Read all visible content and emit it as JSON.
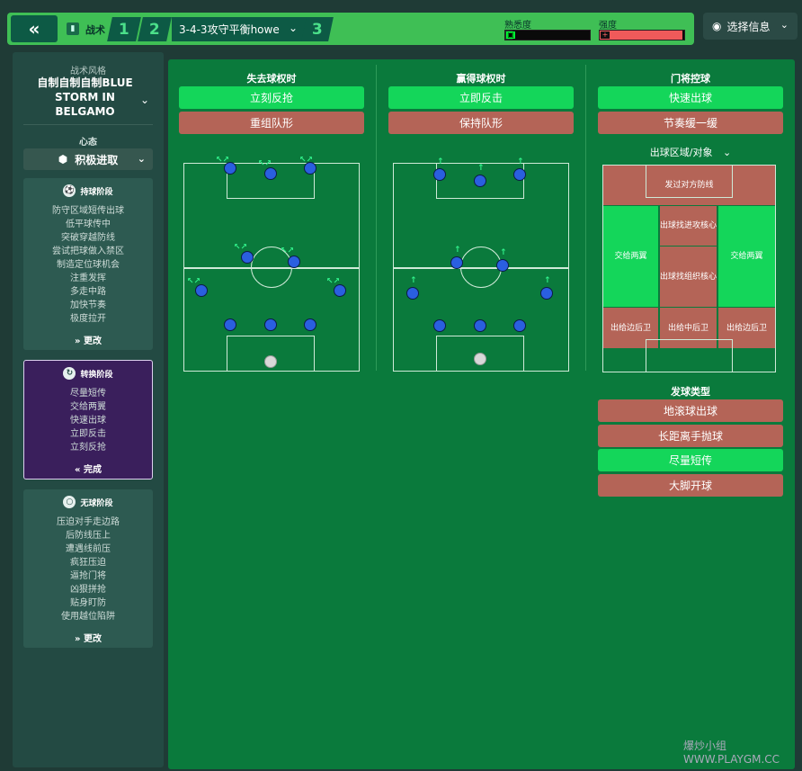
{
  "topbar": {
    "back_icon": "«",
    "tactics_label": "战术",
    "slot1": "1",
    "slot2": "2",
    "formation": "3-4-3攻守平衡howe",
    "slot3": "3",
    "familiarity_label": "熟悉度",
    "intensity_label": "强度",
    "info_button": "选择信息",
    "familiarity_fill": 0.08,
    "intensity_fill": 0.98
  },
  "sidebar": {
    "style_label": "战术风格",
    "style_name": "自制自制自制BLUE STORM IN BELGAMO",
    "mentality_label": "心态",
    "mentality_value": "积极进取",
    "in_possession": {
      "title": "持球阶段",
      "items": [
        "防守区域短传出球",
        "低平球传中",
        "突破穿越防线",
        "尝试把球做入禁区",
        "制造定位球机会",
        "注重发挥",
        "多走中路",
        "加快节奏",
        "极度拉开"
      ],
      "action": "更改"
    },
    "transition": {
      "title": "转换阶段",
      "items": [
        "尽量短传",
        "交给两翼",
        "快速出球",
        "立即反击",
        "立刻反抢"
      ],
      "action": "完成"
    },
    "out_possession": {
      "title": "无球阶段",
      "items": [
        "压迫对手走边路",
        "后防线压上",
        "遭遇线前压",
        "疯狂压迫",
        "逼抢门将",
        "凶狠拼抢",
        "贴身盯防",
        "使用越位陷阱"
      ],
      "action": "更改"
    }
  },
  "main": {
    "lose_title": "失去球权时",
    "lose_btn1": "立刻反抢",
    "lose_btn2": "重组队形",
    "win_title": "赢得球权时",
    "win_btn1": "立即反击",
    "win_btn2": "保持队形",
    "gk_title": "门将控球",
    "gk_btn1": "快速出球",
    "gk_btn2": "节奏缓一缓",
    "distribution_label": "出球区域/对象",
    "zones": {
      "top": "发过对方防线",
      "center_top": "出球找进攻核心",
      "left_wing": "交给两翼",
      "center_mid": "出球找组织核心",
      "right_wing": "交给两翼",
      "left_back": "出给边后卫",
      "center_back": "出给中后卫",
      "right_back": "出给边后卫"
    },
    "distribution_type_label": "发球类型",
    "dist_types": [
      "地滚球出球",
      "长距离手抛球",
      "尽量短传",
      "大脚开球"
    ]
  },
  "watermark": "爆炒小组 WWW.PLAYGM.CC",
  "colors": {
    "accent_on": "#14d65a",
    "accent_off": "#b46457",
    "pitch_bg": "#0a7a3c",
    "player": "#2a5fe0"
  }
}
